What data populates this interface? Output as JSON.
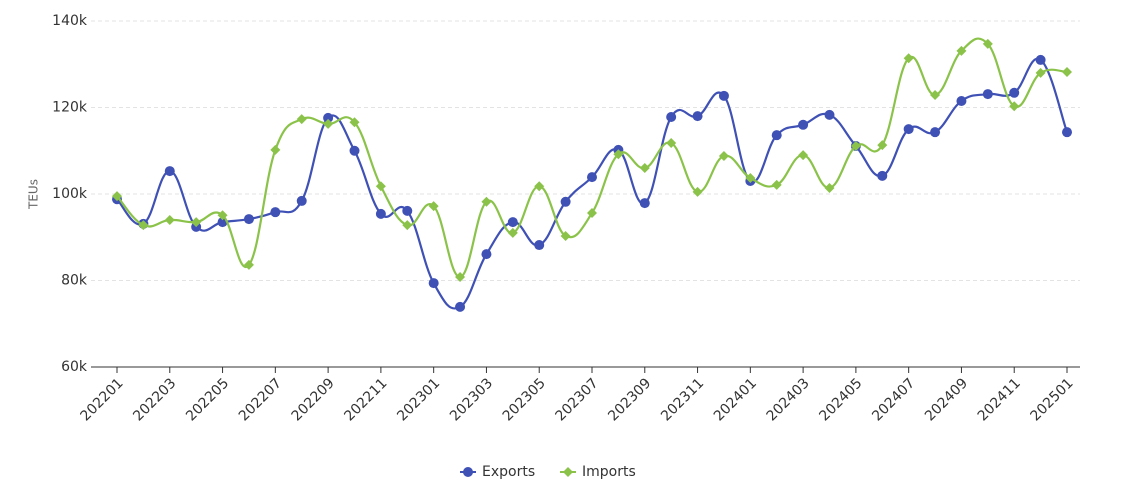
{
  "chart_data": {
    "type": "line",
    "y_label": "TEUs",
    "categories": [
      "202201",
      null,
      "202203",
      null,
      "202205",
      null,
      "202207",
      null,
      "202209",
      null,
      "202211",
      null,
      "202301",
      null,
      "202303",
      null,
      "202305",
      null,
      "202307",
      null,
      "202309",
      null,
      "202311",
      null,
      "202401",
      null,
      "202403",
      null,
      "202405",
      null,
      "202407",
      null,
      "202409",
      null,
      "202411",
      null,
      "202501"
    ],
    "series": [
      {
        "name": "Exports",
        "color": "#3f51b5",
        "marker": "circle",
        "values": [
          98800,
          93100,
          105300,
          92400,
          93500,
          94200,
          95800,
          98400,
          117600,
          110000,
          95400,
          96100,
          79400,
          73900,
          86100,
          93500,
          88200,
          98200,
          103900,
          110200,
          97900,
          117800,
          118000,
          122700,
          103000,
          113600,
          116000,
          118300,
          111100,
          104200,
          115000,
          114300,
          121500,
          123100,
          123400,
          131000,
          114300
        ]
      },
      {
        "name": "Imports",
        "color": "#8bc34a",
        "marker": "diamond",
        "values": [
          99500,
          92800,
          94000,
          93500,
          95100,
          83600,
          110200,
          117300,
          116200,
          116600,
          101800,
          92800,
          97200,
          80800,
          98200,
          91000,
          101800,
          90300,
          95600,
          109200,
          106000,
          111800,
          100500,
          108800,
          103700,
          102100,
          109000,
          101400,
          111100,
          111300,
          131400,
          122900,
          133100,
          134700,
          120300,
          128000,
          128200
        ]
      }
    ],
    "ylim": [
      60000,
      140000
    ],
    "yticks": [
      {
        "value": 60000,
        "label": "60k"
      },
      {
        "value": 80000,
        "label": "80k"
      },
      {
        "value": 100000,
        "label": "100k"
      },
      {
        "value": 120000,
        "label": "120k"
      },
      {
        "value": 140000,
        "label": "140k"
      }
    ],
    "grid": true,
    "legend": "bottom"
  }
}
